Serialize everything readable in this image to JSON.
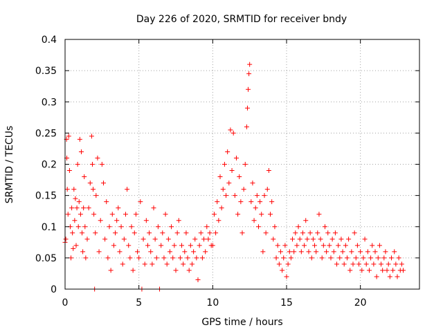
{
  "chart_data": {
    "type": "scatter",
    "title": "Day 226 of 2020, SRMTID for receiver bndy",
    "xlabel": "GPS time / hours",
    "ylabel": "SRMTID / TECUs",
    "xlim": [
      0,
      24
    ],
    "ylim": [
      0,
      0.4
    ],
    "xticks": [
      0,
      5,
      10,
      15,
      20
    ],
    "xtick_labels": [
      "0",
      "5",
      "10",
      "15",
      "20"
    ],
    "yticks": [
      0,
      0.05,
      0.1,
      0.15,
      0.2,
      0.25,
      0.3,
      0.35,
      0.4
    ],
    "ytick_labels": [
      "0",
      "0.05",
      "0.1",
      "0.15",
      "0.2",
      "0.25",
      "0.3",
      "0.35",
      "0.4"
    ],
    "grid": true,
    "marker": "+",
    "color": "#ff0000",
    "series": [
      {
        "name": "SRMTID",
        "points": [
          [
            0.0,
            0.075
          ],
          [
            0.05,
            0.08
          ],
          [
            0.1,
            0.24
          ],
          [
            0.12,
            0.21
          ],
          [
            0.15,
            0.16
          ],
          [
            0.2,
            0.12
          ],
          [
            0.25,
            0.245
          ],
          [
            0.3,
            0.19
          ],
          [
            0.35,
            0.1
          ],
          [
            0.4,
            0.05
          ],
          [
            0.45,
            0.13
          ],
          [
            0.5,
            0.09
          ],
          [
            0.55,
            0.065
          ],
          [
            0.6,
            0.16
          ],
          [
            0.65,
            0.11
          ],
          [
            0.7,
            0.145
          ],
          [
            0.75,
            0.07
          ],
          [
            0.8,
            0.13
          ],
          [
            0.85,
            0.2
          ],
          [
            0.9,
            0.1
          ],
          [
            0.95,
            0.14
          ],
          [
            1.0,
            0.24
          ],
          [
            1.05,
            0.12
          ],
          [
            1.1,
            0.22
          ],
          [
            1.15,
            0.09
          ],
          [
            1.2,
            0.06
          ],
          [
            1.25,
            0.13
          ],
          [
            1.3,
            0.18
          ],
          [
            1.35,
            0.1
          ],
          [
            1.4,
            0.05
          ],
          [
            1.5,
            0.08
          ],
          [
            1.6,
            0.13
          ],
          [
            1.7,
            0.17
          ],
          [
            1.8,
            0.245
          ],
          [
            1.85,
            0.2
          ],
          [
            1.9,
            0.16
          ],
          [
            1.95,
            0.12
          ],
          [
            2.0,
            0.0
          ],
          [
            2.05,
            0.09
          ],
          [
            2.1,
            0.15
          ],
          [
            2.2,
            0.21
          ],
          [
            2.3,
            0.06
          ],
          [
            2.4,
            0.11
          ],
          [
            2.5,
            0.2
          ],
          [
            2.6,
            0.17
          ],
          [
            2.7,
            0.08
          ],
          [
            2.8,
            0.14
          ],
          [
            2.9,
            0.05
          ],
          [
            3.0,
            0.1
          ],
          [
            3.1,
            0.03
          ],
          [
            3.2,
            0.12
          ],
          [
            3.3,
            0.07
          ],
          [
            3.4,
            0.09
          ],
          [
            3.5,
            0.11
          ],
          [
            3.6,
            0.13
          ],
          [
            3.7,
            0.06
          ],
          [
            3.8,
            0.1
          ],
          [
            3.9,
            0.04
          ],
          [
            4.0,
            0.08
          ],
          [
            4.1,
            0.12
          ],
          [
            4.2,
            0.16
          ],
          [
            4.3,
            0.07
          ],
          [
            4.4,
            0.05
          ],
          [
            4.5,
            0.1
          ],
          [
            4.6,
            0.03
          ],
          [
            4.7,
            0.09
          ],
          [
            4.8,
            0.12
          ],
          [
            4.9,
            0.06
          ],
          [
            5.0,
            0.05
          ],
          [
            5.1,
            0.14
          ],
          [
            5.2,
            0.0
          ],
          [
            5.3,
            0.08
          ],
          [
            5.4,
            0.04
          ],
          [
            5.5,
            0.11
          ],
          [
            5.6,
            0.07
          ],
          [
            5.7,
            0.09
          ],
          [
            5.8,
            0.06
          ],
          [
            5.9,
            0.04
          ],
          [
            6.0,
            0.13
          ],
          [
            6.1,
            0.08
          ],
          [
            6.2,
            0.05
          ],
          [
            6.3,
            0.1
          ],
          [
            6.4,
            0.0
          ],
          [
            6.5,
            0.07
          ],
          [
            6.6,
            0.09
          ],
          [
            6.7,
            0.05
          ],
          [
            6.8,
            0.12
          ],
          [
            6.9,
            0.04
          ],
          [
            7.0,
            0.08
          ],
          [
            7.1,
            0.06
          ],
          [
            7.2,
            0.1
          ],
          [
            7.3,
            0.05
          ],
          [
            7.4,
            0.07
          ],
          [
            7.5,
            0.03
          ],
          [
            7.6,
            0.09
          ],
          [
            7.7,
            0.11
          ],
          [
            7.8,
            0.05
          ],
          [
            7.9,
            0.07
          ],
          [
            8.0,
            0.04
          ],
          [
            8.1,
            0.06
          ],
          [
            8.2,
            0.09
          ],
          [
            8.3,
            0.05
          ],
          [
            8.4,
            0.03
          ],
          [
            8.5,
            0.07
          ],
          [
            8.6,
            0.04
          ],
          [
            8.7,
            0.06
          ],
          [
            8.8,
            0.08
          ],
          [
            8.9,
            0.05
          ],
          [
            9.0,
            0.015
          ],
          [
            9.1,
            0.07
          ],
          [
            9.2,
            0.09
          ],
          [
            9.3,
            0.05
          ],
          [
            9.4,
            0.08
          ],
          [
            9.5,
            0.06
          ],
          [
            9.6,
            0.1
          ],
          [
            9.7,
            0.08
          ],
          [
            9.8,
            0.09
          ],
          [
            9.9,
            0.07
          ],
          [
            10.0,
            0.07
          ],
          [
            10.1,
            0.12
          ],
          [
            10.2,
            0.09
          ],
          [
            10.3,
            0.14
          ],
          [
            10.4,
            0.11
          ],
          [
            10.5,
            0.18
          ],
          [
            10.6,
            0.13
          ],
          [
            10.7,
            0.16
          ],
          [
            10.8,
            0.2
          ],
          [
            10.9,
            0.15
          ],
          [
            11.0,
            0.22
          ],
          [
            11.1,
            0.17
          ],
          [
            11.2,
            0.255
          ],
          [
            11.3,
            0.19
          ],
          [
            11.4,
            0.25
          ],
          [
            11.5,
            0.15
          ],
          [
            11.6,
            0.21
          ],
          [
            11.7,
            0.12
          ],
          [
            11.8,
            0.18
          ],
          [
            11.9,
            0.14
          ],
          [
            12.0,
            0.09
          ],
          [
            12.1,
            0.16
          ],
          [
            12.2,
            0.2
          ],
          [
            12.3,
            0.26
          ],
          [
            12.35,
            0.29
          ],
          [
            12.4,
            0.32
          ],
          [
            12.45,
            0.345
          ],
          [
            12.5,
            0.36
          ],
          [
            12.6,
            0.14
          ],
          [
            12.7,
            0.17
          ],
          [
            12.8,
            0.11
          ],
          [
            12.9,
            0.13
          ],
          [
            13.0,
            0.15
          ],
          [
            13.1,
            0.1
          ],
          [
            13.2,
            0.14
          ],
          [
            13.3,
            0.12
          ],
          [
            13.4,
            0.06
          ],
          [
            13.5,
            0.15
          ],
          [
            13.6,
            0.09
          ],
          [
            13.7,
            0.16
          ],
          [
            13.8,
            0.19
          ],
          [
            13.9,
            0.12
          ],
          [
            14.0,
            0.14
          ],
          [
            14.1,
            0.08
          ],
          [
            14.2,
            0.1
          ],
          [
            14.3,
            0.05
          ],
          [
            14.4,
            0.07
          ],
          [
            14.5,
            0.04
          ],
          [
            14.6,
            0.06
          ],
          [
            14.7,
            0.03
          ],
          [
            14.8,
            0.05
          ],
          [
            14.9,
            0.07
          ],
          [
            15.0,
            0.02
          ],
          [
            15.1,
            0.04
          ],
          [
            15.2,
            0.06
          ],
          [
            15.3,
            0.05
          ],
          [
            15.4,
            0.08
          ],
          [
            15.5,
            0.06
          ],
          [
            15.6,
            0.09
          ],
          [
            15.7,
            0.07
          ],
          [
            15.8,
            0.1
          ],
          [
            15.9,
            0.08
          ],
          [
            16.0,
            0.06
          ],
          [
            16.1,
            0.09
          ],
          [
            16.2,
            0.07
          ],
          [
            16.3,
            0.11
          ],
          [
            16.4,
            0.08
          ],
          [
            16.5,
            0.06
          ],
          [
            16.6,
            0.09
          ],
          [
            16.7,
            0.05
          ],
          [
            16.8,
            0.08
          ],
          [
            16.9,
            0.07
          ],
          [
            17.0,
            0.06
          ],
          [
            17.1,
            0.09
          ],
          [
            17.2,
            0.12
          ],
          [
            17.3,
            0.08
          ],
          [
            17.4,
            0.05
          ],
          [
            17.5,
            0.07
          ],
          [
            17.6,
            0.1
          ],
          [
            17.7,
            0.06
          ],
          [
            17.8,
            0.09
          ],
          [
            17.9,
            0.07
          ],
          [
            18.0,
            0.05
          ],
          [
            18.1,
            0.08
          ],
          [
            18.2,
            0.06
          ],
          [
            18.3,
            0.09
          ],
          [
            18.4,
            0.04
          ],
          [
            18.5,
            0.07
          ],
          [
            18.6,
            0.05
          ],
          [
            18.7,
            0.08
          ],
          [
            18.8,
            0.06
          ],
          [
            18.9,
            0.04
          ],
          [
            19.0,
            0.07
          ],
          [
            19.1,
            0.05
          ],
          [
            19.2,
            0.08
          ],
          [
            19.3,
            0.03
          ],
          [
            19.4,
            0.06
          ],
          [
            19.5,
            0.04
          ],
          [
            19.6,
            0.09
          ],
          [
            19.7,
            0.05
          ],
          [
            19.8,
            0.07
          ],
          [
            19.9,
            0.04
          ],
          [
            20.0,
            0.06
          ],
          [
            20.1,
            0.03
          ],
          [
            20.2,
            0.05
          ],
          [
            20.3,
            0.08
          ],
          [
            20.4,
            0.04
          ],
          [
            20.5,
            0.06
          ],
          [
            20.6,
            0.03
          ],
          [
            20.7,
            0.05
          ],
          [
            20.8,
            0.07
          ],
          [
            20.9,
            0.04
          ],
          [
            21.0,
            0.06
          ],
          [
            21.1,
            0.02
          ],
          [
            21.2,
            0.05
          ],
          [
            21.3,
            0.07
          ],
          [
            21.4,
            0.04
          ],
          [
            21.5,
            0.03
          ],
          [
            21.6,
            0.05
          ],
          [
            21.7,
            0.06
          ],
          [
            21.8,
            0.03
          ],
          [
            21.9,
            0.04
          ],
          [
            22.0,
            0.02
          ],
          [
            22.1,
            0.05
          ],
          [
            22.2,
            0.03
          ],
          [
            22.3,
            0.06
          ],
          [
            22.4,
            0.04
          ],
          [
            22.5,
            0.02
          ],
          [
            22.6,
            0.05
          ],
          [
            22.7,
            0.03
          ],
          [
            22.8,
            0.04
          ],
          [
            22.9,
            0.03
          ]
        ]
      }
    ]
  }
}
